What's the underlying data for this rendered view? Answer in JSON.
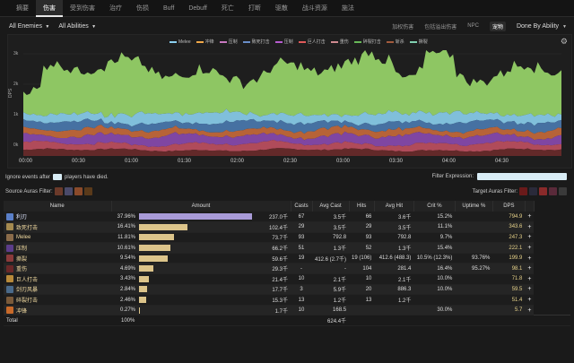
{
  "tabs": [
    {
      "label": "摘要",
      "active": false
    },
    {
      "label": "伤害",
      "active": true
    },
    {
      "label": "受到伤害",
      "active": false
    },
    {
      "label": "治疗",
      "active": false
    },
    {
      "label": "伤损",
      "active": false
    },
    {
      "label": "Buff",
      "active": false
    },
    {
      "label": "Debuff",
      "active": false
    },
    {
      "label": "死亡",
      "active": false
    },
    {
      "label": "打断",
      "active": false
    },
    {
      "label": "驱散",
      "active": false
    },
    {
      "label": "战斗资源",
      "active": false
    },
    {
      "label": "施法",
      "active": false
    }
  ],
  "controls": {
    "enemies": "All Enemies",
    "abilities": "All Abilities",
    "right_tabs": [
      "加权伤害",
      "包括溢出伤害",
      "NPC",
      "宠物"
    ],
    "right_selected": "宠物",
    "done_by": "Done By Ability"
  },
  "chart_data": {
    "type": "area",
    "title": "",
    "xlabel": "",
    "ylabel": "DPS",
    "y_ticks": [
      "3k",
      "2k",
      "1k",
      "0k"
    ],
    "ylim": [
      0,
      3000
    ],
    "x_ticks": [
      "00:00",
      "00:30",
      "01:00",
      "01:30",
      "02:00",
      "02:30",
      "03:00",
      "03:30",
      "04:00",
      "04:30"
    ],
    "legend": [
      {
        "name": "Melee",
        "color": "#8bd0f0"
      },
      {
        "name": "冲锋",
        "color": "#f0a848"
      },
      {
        "name": "压制",
        "color": "#c878c0"
      },
      {
        "name": "致死打击",
        "color": "#6a8ec8"
      },
      {
        "name": "压制",
        "color": "#b65ccf"
      },
      {
        "name": "巨人打击",
        "color": "#e05a5a"
      },
      {
        "name": "重伤",
        "color": "#d08a90"
      },
      {
        "name": "碎裂打击",
        "color": "#68b858"
      },
      {
        "name": "斩杀",
        "color": "#a35b3d"
      },
      {
        "name": "撕裂",
        "color": "#80d0b0"
      }
    ],
    "grid": true
  },
  "filter": {
    "ignore_prefix": "Ignore events after",
    "ignore_suffix": "players have died.",
    "expression_label": "Filter Expression:",
    "source_label": "Source Auras Filter:",
    "target_label": "Target Auras Filter:"
  },
  "table": {
    "headers": [
      "Name",
      "Amount",
      "Casts",
      "Avg Cast",
      "Hits",
      "Avg Hit",
      "Crit %",
      "Uptime %",
      "DPS"
    ],
    "rows": [
      {
        "name": "利刃",
        "pct": "37.96%",
        "frac": 0.3796,
        "amount": "237.0千",
        "casts": "67",
        "avg_cast": "3.5千",
        "hits": "66",
        "avg_hit": "3.6千",
        "crit": "15.2%",
        "uptime": "",
        "dps": "794.9",
        "color": "#5a7fc8",
        "hi": true
      },
      {
        "name": "致死打击",
        "pct": "16.41%",
        "frac": 0.1641,
        "amount": "102.4千",
        "casts": "29",
        "avg_cast": "3.5千",
        "hits": "29",
        "avg_hit": "3.5千",
        "crit": "11.1%",
        "uptime": "",
        "dps": "343.6",
        "color": "#a58a4f",
        "hi": false
      },
      {
        "name": "Melee",
        "pct": "11.81%",
        "frac": 0.1181,
        "amount": "73.7千",
        "casts": "93",
        "avg_cast": "792.8",
        "hits": "93",
        "avg_hit": "792.8",
        "crit": "9.7%",
        "uptime": "",
        "dps": "247.3",
        "color": "#8a6b4a",
        "hi": false
      },
      {
        "name": "压制",
        "pct": "10.61%",
        "frac": 0.1061,
        "amount": "66.2千",
        "casts": "51",
        "avg_cast": "1.3千",
        "hits": "52",
        "avg_hit": "1.3千",
        "crit": "15.4%",
        "uptime": "",
        "dps": "222.1",
        "color": "#5c3d8a",
        "hi": false
      },
      {
        "name": "撕裂",
        "pct": "9.54%",
        "frac": 0.0954,
        "amount": "59.6千",
        "casts": "19",
        "avg_cast": "412.6 (2.7千)",
        "hits": "19 (106)",
        "avg_hit": "412.6 (488.3)",
        "crit": "10.5% (12.3%)",
        "uptime": "93.76%",
        "dps": "199.9",
        "color": "#8a3a3a",
        "hi": false
      },
      {
        "name": "重伤",
        "pct": "4.69%",
        "frac": 0.0469,
        "amount": "29.3千",
        "casts": "-",
        "avg_cast": "-",
        "hits": "104",
        "avg_hit": "281.4",
        "crit": "16.4%",
        "uptime": "95.27%",
        "dps": "98.1",
        "color": "#6a2828",
        "hi": false
      },
      {
        "name": "巨人打击",
        "pct": "3.43%",
        "frac": 0.0343,
        "amount": "21.4千",
        "casts": "10",
        "avg_cast": "2.1千",
        "hits": "10",
        "avg_hit": "2.1千",
        "crit": "10.0%",
        "uptime": "",
        "dps": "71.8",
        "color": "#b88a3a",
        "hi": false
      },
      {
        "name": "剑刃风暴",
        "pct": "2.84%",
        "frac": 0.0284,
        "amount": "17.7千",
        "casts": "3",
        "avg_cast": "5.9千",
        "hits": "20",
        "avg_hit": "886.3",
        "crit": "10.0%",
        "uptime": "",
        "dps": "59.5",
        "color": "#4a6a8a",
        "hi": false,
        "expand": true
      },
      {
        "name": "碎裂打击",
        "pct": "2.46%",
        "frac": 0.0246,
        "amount": "15.3千",
        "casts": "13",
        "avg_cast": "1.2千",
        "hits": "13",
        "avg_hit": "1.2千",
        "crit": "",
        "uptime": "",
        "dps": "51.4",
        "color": "#7a5a3a",
        "hi": false
      },
      {
        "name": "冲锋",
        "pct": "0.27%",
        "frac": 0.0027,
        "amount": "1.7千",
        "casts": "10",
        "avg_cast": "168.5",
        "hits": "",
        "avg_hit": "",
        "crit": "30.0%",
        "uptime": "",
        "dps": "5.7",
        "color": "#c86a2a",
        "hi": false
      }
    ],
    "total": {
      "label": "Total",
      "pct": "100%",
      "amount": "624.4千"
    }
  }
}
